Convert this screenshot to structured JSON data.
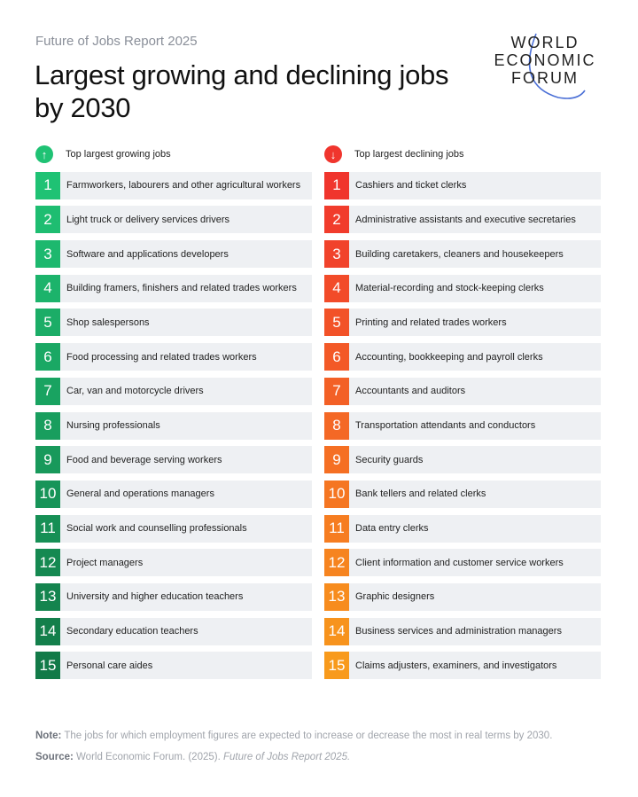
{
  "header": {
    "kicker": "Future of Jobs Report 2025",
    "title": "Largest growing and declining jobs by 2030"
  },
  "logo": {
    "lines": [
      "WORLD",
      "ECONOMIC",
      "FORUM"
    ]
  },
  "growing": {
    "heading": "Top largest growing jobs",
    "icon": "arrow-up-icon",
    "color_start": "#1fc274",
    "color_end": "#127a48",
    "items": [
      "Farmworkers, labourers and other agricultural workers",
      "Light truck or delivery services drivers",
      "Software and applications developers",
      "Building framers, finishers and related trades workers",
      "Shop salespersons",
      "Food processing and related trades workers",
      "Car, van and motorcycle drivers",
      "Nursing professionals",
      "Food and beverage serving workers",
      "General and operations managers",
      "Social work and counselling professionals",
      "Project managers",
      "University and higher education teachers",
      "Secondary education teachers",
      "Personal care aides"
    ]
  },
  "declining": {
    "heading": "Top largest declining jobs",
    "icon": "arrow-down-icon",
    "color_start": "#f0352d",
    "color_end": "#f89a1c",
    "items": [
      "Cashiers and ticket clerks",
      "Administrative assistants and executive secretaries",
      "Building caretakers, cleaners and housekeepers",
      "Material-recording and stock-keeping clerks",
      "Printing and related trades workers",
      "Accounting, bookkeeping and payroll clerks",
      "Accountants and auditors",
      "Transportation attendants and conductors",
      "Security guards",
      "Bank tellers and related clerks",
      "Data entry clerks",
      "Client information and customer service workers",
      "Graphic designers",
      "Business services and administration managers",
      "Claims adjusters, examiners, and investigators"
    ]
  },
  "footer": {
    "note_label": "Note:",
    "note": "The jobs for which employment figures are expected to increase or decrease the most in real terms by 2030.",
    "source_label": "Source:",
    "source": "World Economic Forum. (2025).",
    "source_title": "Future of Jobs Report 2025."
  }
}
